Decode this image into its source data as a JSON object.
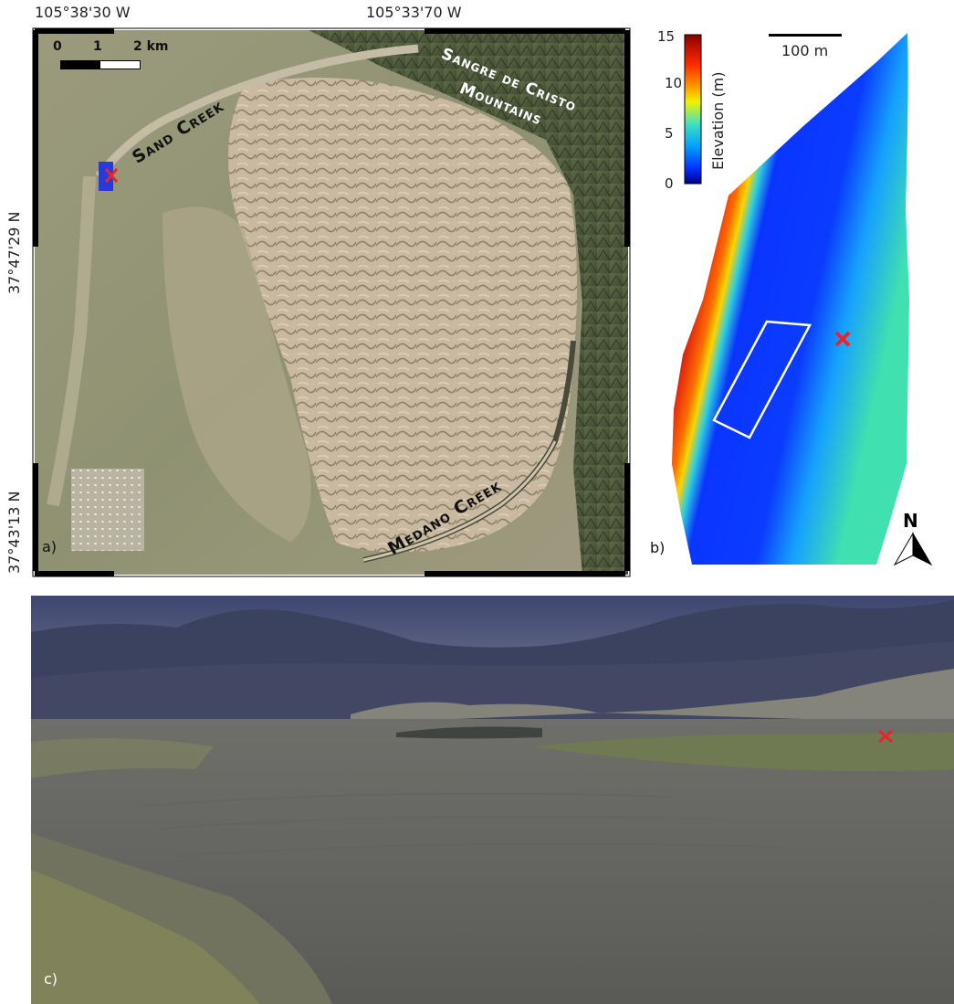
{
  "panel_a": {
    "label": "a)",
    "lon_labels": [
      "105°38'30 W",
      "105°33'70 W"
    ],
    "lat_labels": [
      "37°47'29 N",
      "37°43'13 N"
    ],
    "scale_ticks": [
      "0",
      "1",
      "2 km"
    ],
    "place_labels": {
      "sand_creek": "Sand Creek",
      "sangre_line1": "Sangre de Cristo",
      "sangre_line2": "Mountains",
      "medano_creek": "Medano Creek"
    },
    "marker_color": "#e8262a",
    "study_box_color": "#2a3ad6"
  },
  "panel_b": {
    "label": "b)",
    "colorbar": {
      "title": "Elevation (m)",
      "ticks": [
        "15",
        "10",
        "5",
        "0"
      ],
      "range": [
        0,
        15
      ]
    },
    "scale_bar": "100 m",
    "north_label": "N",
    "marker_color": "#e8262a"
  },
  "panel_c": {
    "label": "c)",
    "marker_color": "#e8262a"
  }
}
